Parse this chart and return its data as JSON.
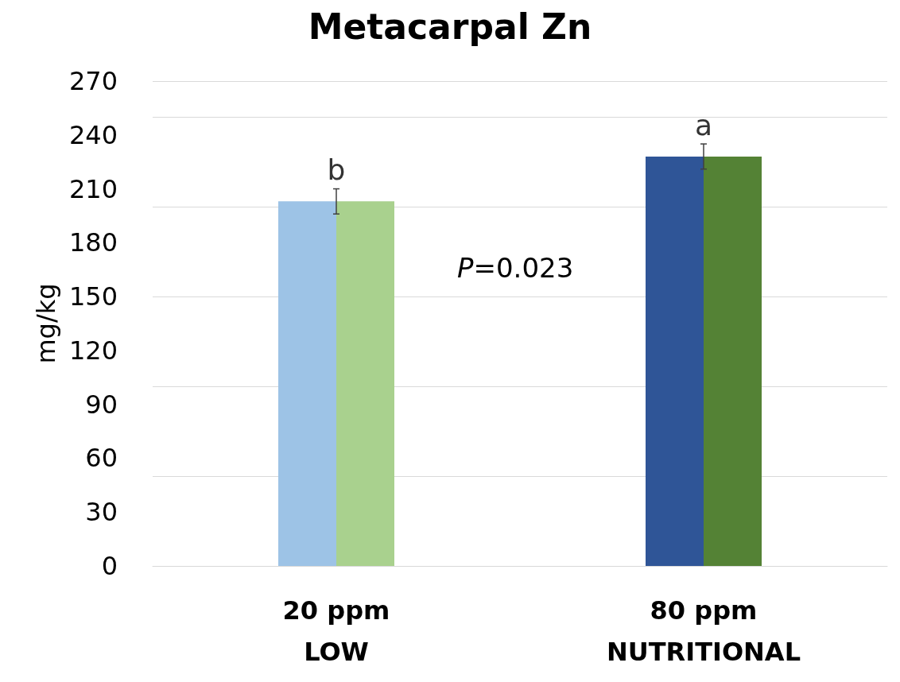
{
  "chart_data": {
    "type": "bar",
    "title": "Metacarpal Zn",
    "ylabel": "mg/kg",
    "categories": [
      "20 ppm\nLOW",
      "80 ppm\nNUTRITIONAL"
    ],
    "series": [
      {
        "colors": [
          "#9dc3e6",
          "#2f5597"
        ],
        "values": [
          203,
          228
        ],
        "errors": [
          7,
          7
        ]
      },
      {
        "colors": [
          "#a9d18e",
          "#548235"
        ],
        "values": [
          203,
          228
        ]
      }
    ],
    "ylim": [
      0,
      270
    ],
    "yticks": [
      0,
      30,
      60,
      90,
      120,
      150,
      180,
      210,
      240,
      270
    ],
    "grid": "y",
    "annotations": [
      "b",
      "a",
      "P=0.023"
    ]
  }
}
